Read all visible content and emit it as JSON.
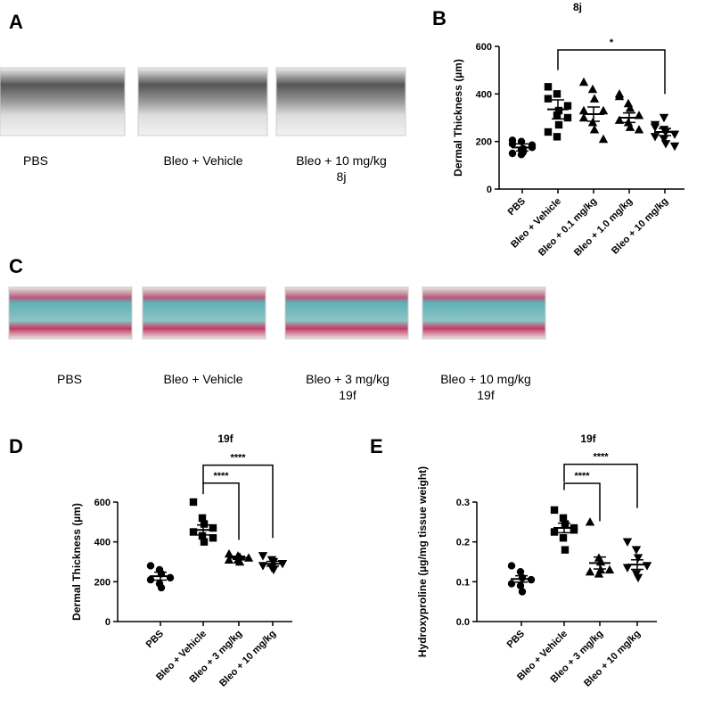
{
  "images": [
    {
      "label": "A",
      "captions": [
        [
          "PBS"
        ],
        [
          "Bleo + Vehicle"
        ],
        [
          "Bleo + 10 mg/kg",
          "8j"
        ]
      ]
    },
    {
      "label": "C",
      "captions": [
        [
          "PBS"
        ],
        [
          "Bleo + Vehicle"
        ],
        [
          "Bleo + 3 mg/kg",
          "19f"
        ],
        [
          "Bleo + 10 mg/kg",
          "19f"
        ]
      ]
    }
  ],
  "chart_data": [
    {
      "type": "dotplot",
      "label": "B",
      "title": "8j",
      "y_label": "Dermal Thickness (µm)",
      "ylim": [
        0,
        600
      ],
      "yticks": [
        0,
        200,
        400,
        600
      ],
      "color": "#000000",
      "categories": [
        "PBS",
        "Bleo + Vehicle",
        "Bleo + 0.1 mg/kg",
        "Bleo + 1.0 mg/kg",
        "Bleo + 10 mg/kg"
      ],
      "markers": [
        "circle",
        "square",
        "triangle-up",
        "triangle-up",
        "triangle-down"
      ],
      "points": [
        [
          150,
          165,
          170,
          185,
          190,
          200,
          155,
          175,
          205,
          145
        ],
        [
          380,
          400,
          270,
          300,
          240,
          220,
          330,
          350,
          430,
          310
        ],
        [
          450,
          420,
          380,
          330,
          300,
          280,
          250,
          210,
          330
        ],
        [
          390,
          360,
          340,
          310,
          290,
          280,
          260,
          250,
          400
        ],
        [
          260,
          250,
          240,
          230,
          220,
          210,
          190,
          180,
          270,
          300
        ]
      ],
      "means": [
        175,
        335,
        315,
        300,
        240
      ],
      "sems": [
        15,
        40,
        30,
        20,
        15
      ],
      "brackets": [
        {
          "groups": [
            1,
            4
          ],
          "y": 585,
          "y_left": 500,
          "y_right": 400,
          "label": "*"
        }
      ]
    },
    {
      "type": "dotplot",
      "label": "D",
      "title": "19f",
      "y_label": "Dermal Thickness (µm)",
      "ylim": [
        0,
        600
      ],
      "yticks": [
        0,
        200,
        400,
        600
      ],
      "color": "#000000",
      "categories": [
        "PBS",
        "Bleo + Vehicle",
        "Bleo + 3 mg/kg",
        "Bleo + 10 mg/kg"
      ],
      "markers": [
        "circle",
        "square",
        "triangle-up",
        "triangle-down"
      ],
      "points": [
        [
          280,
          260,
          240,
          220,
          210,
          190,
          170
        ],
        [
          600,
          520,
          490,
          470,
          450,
          430,
          400,
          420
        ],
        [
          340,
          330,
          325,
          320,
          310,
          310,
          300
        ],
        [
          330,
          310,
          300,
          290,
          280,
          270,
          260
        ]
      ],
      "means": [
        228,
        460,
        320,
        290
      ],
      "sems": [
        20,
        25,
        8,
        12
      ],
      "brackets": [
        {
          "groups": [
            1,
            2
          ],
          "y": 695,
          "y_left": 640,
          "y_right": 410,
          "label": "****"
        },
        {
          "groups": [
            1,
            3
          ],
          "y": 785,
          "y_left": 690,
          "y_right": 420,
          "label": "****"
        }
      ]
    },
    {
      "type": "dotplot",
      "label": "E",
      "title": "19f",
      "y_label": "Hydroxyproline (µg/mg tissue weight)",
      "ylim": [
        0,
        0.3
      ],
      "yticks": [
        {
          "value": 0,
          "label": "0.0"
        },
        0.1,
        0.2,
        0.3
      ],
      "color": "#000000",
      "categories": [
        "PBS",
        "Bleo + Vehicle",
        "Bleo + 3 mg/kg",
        "Bleo + 10 mg/kg"
      ],
      "markers": [
        "circle",
        "square",
        "triangle-up",
        "triangle-down"
      ],
      "points": [
        [
          0.14,
          0.125,
          0.11,
          0.105,
          0.095,
          0.09,
          0.075
        ],
        [
          0.28,
          0.26,
          0.245,
          0.235,
          0.225,
          0.21,
          0.18,
          0.23
        ],
        [
          0.25,
          0.16,
          0.15,
          0.13,
          0.125,
          0.12,
          0.13
        ],
        [
          0.2,
          0.18,
          0.16,
          0.14,
          0.135,
          0.12,
          0.11
        ]
      ],
      "means": [
        0.107,
        0.235,
        0.147,
        0.143
      ],
      "sems": [
        0.008,
        0.012,
        0.015,
        0.012
      ],
      "brackets": [
        {
          "groups": [
            1,
            2
          ],
          "y": 0.347,
          "y_left": 0.33,
          "y_right": 0.252,
          "label": "****"
        },
        {
          "groups": [
            1,
            3
          ],
          "y": 0.395,
          "y_left": 0.35,
          "y_right": 0.285,
          "label": "****"
        }
      ]
    }
  ]
}
